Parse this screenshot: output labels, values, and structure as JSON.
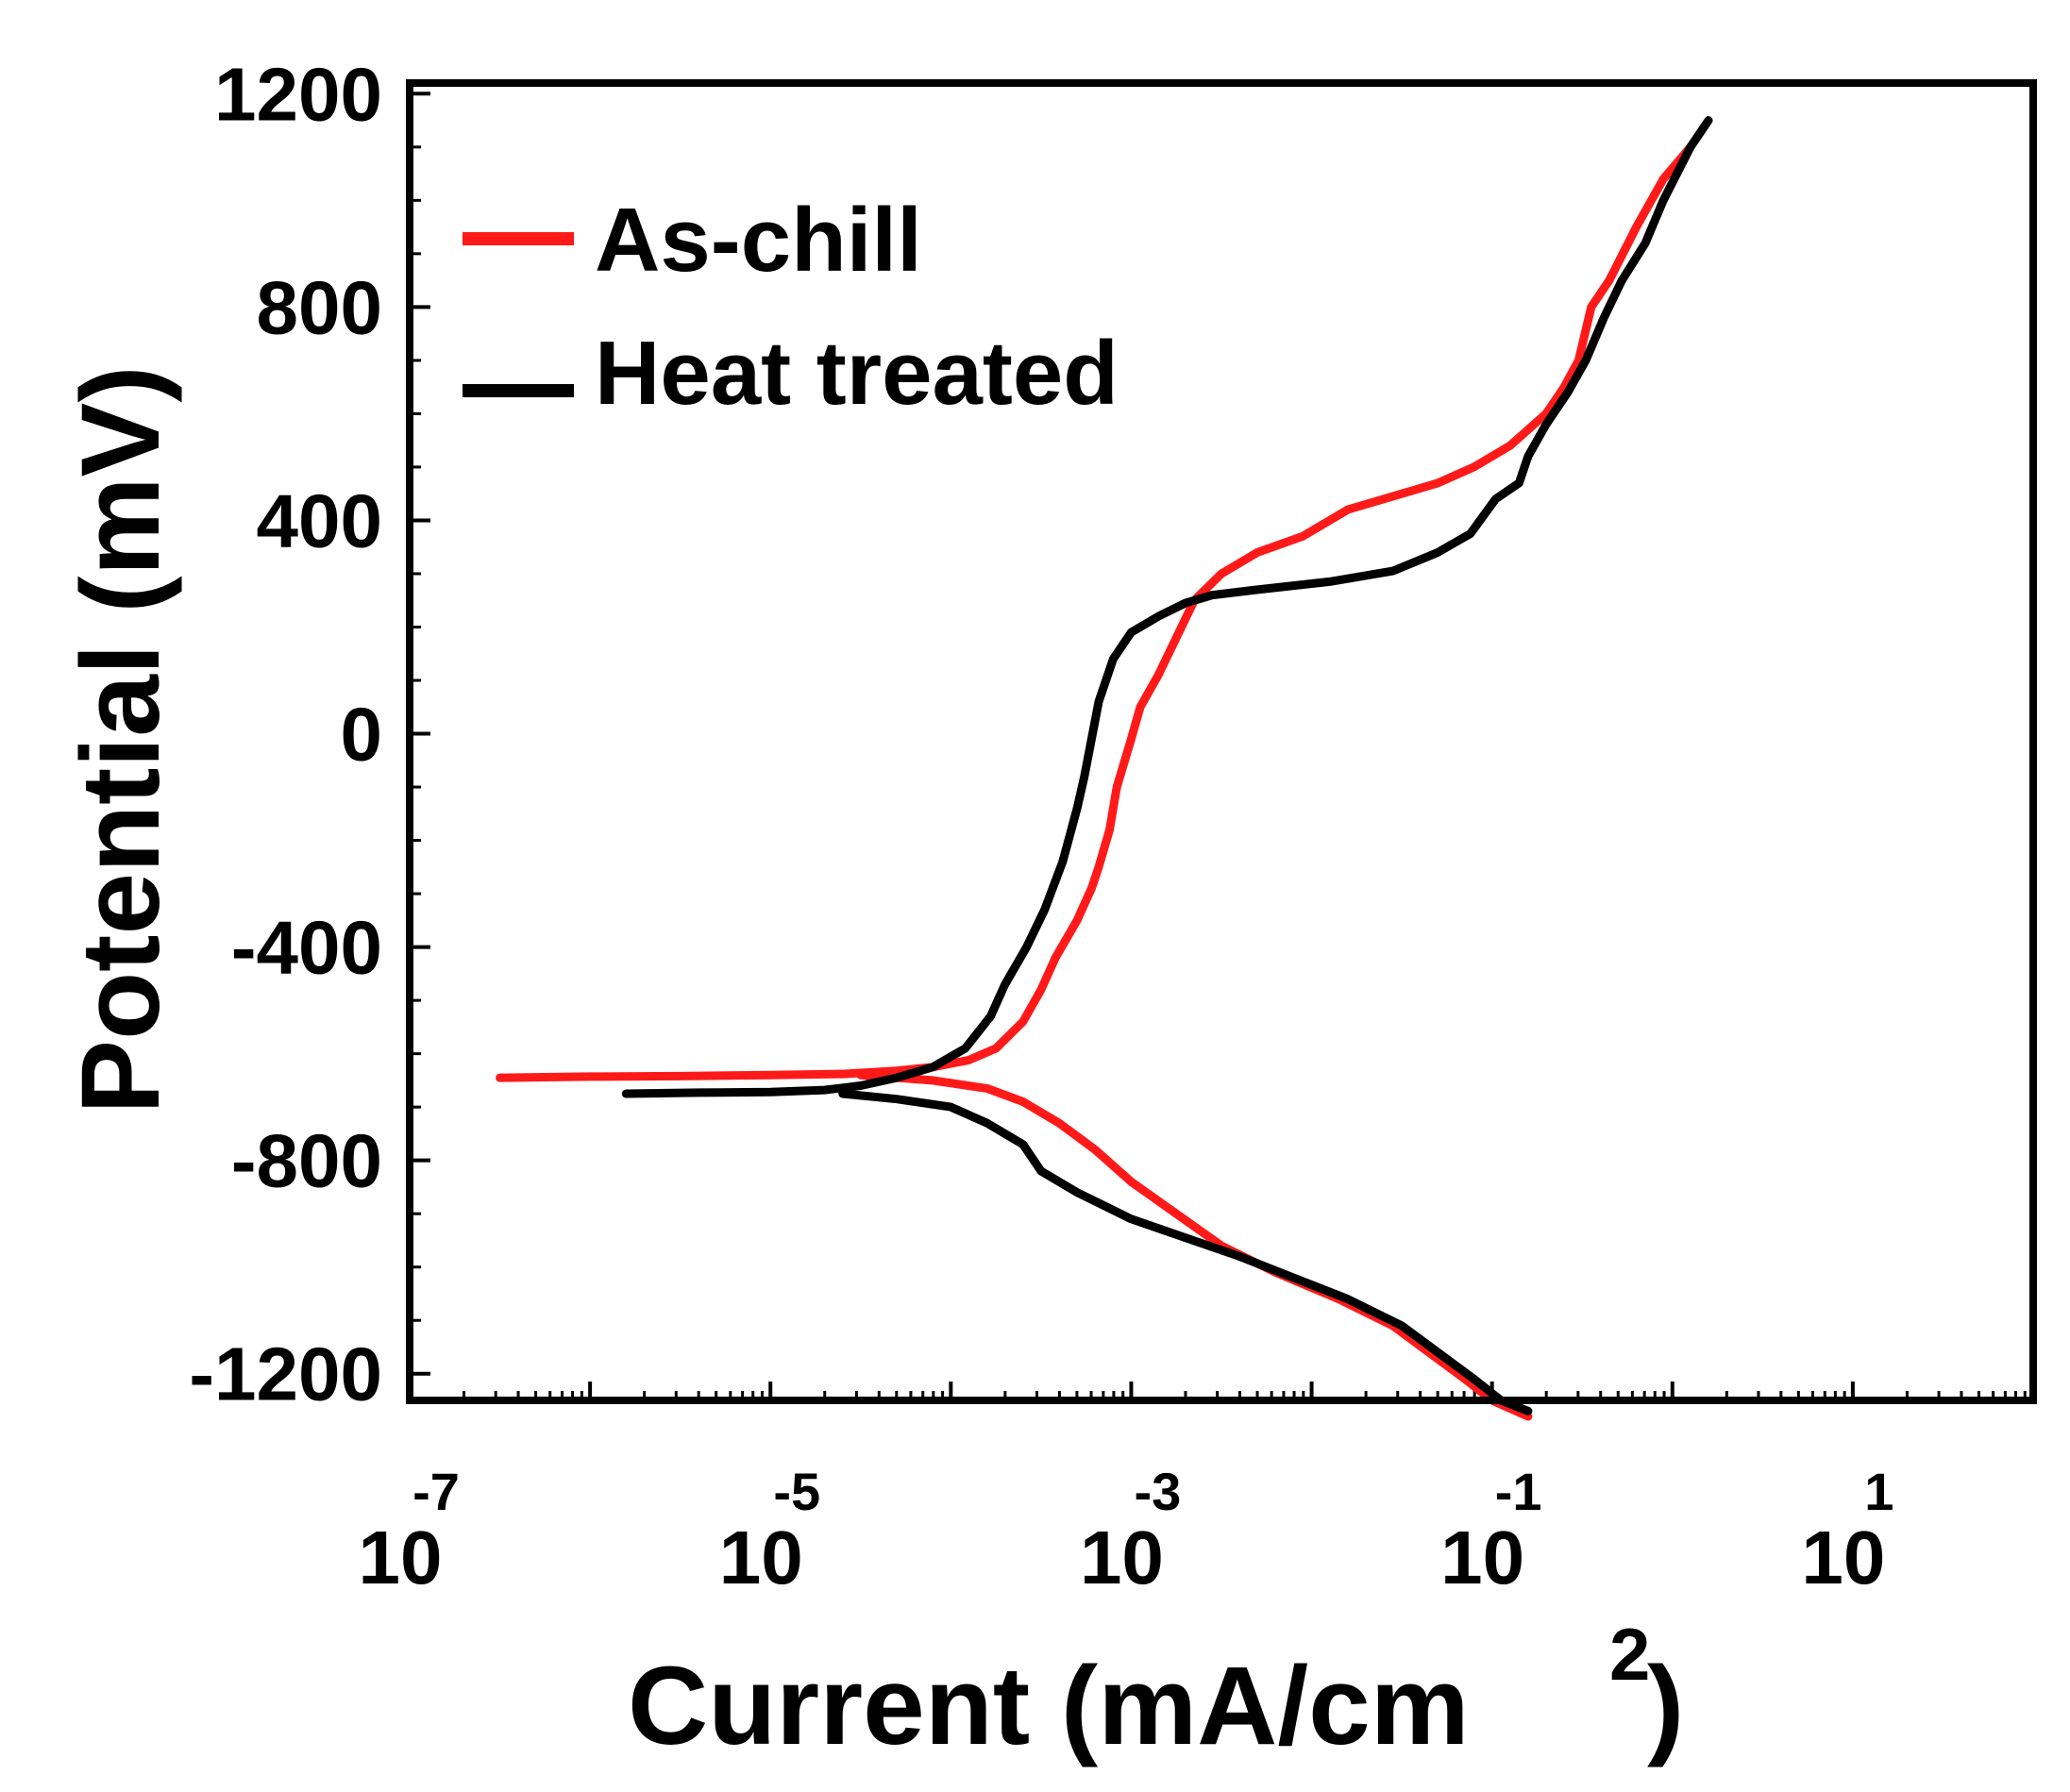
{
  "chart_data": {
    "type": "line",
    "title": "",
    "xlabel": "Current (mA/cm",
    "xlabel_superscript": "2",
    "xlabel_close": ")",
    "ylabel": "Potential (mV)",
    "xscale": "log",
    "xlim_exponent": [
      -7,
      2
    ],
    "ylim": [
      -1250,
      1220
    ],
    "x_ticks": [
      {
        "base": "10",
        "exp": "-7",
        "value": -7
      },
      {
        "base": "10",
        "exp": "-5",
        "value": -5
      },
      {
        "base": "10",
        "exp": "-3",
        "value": -3
      },
      {
        "base": "10",
        "exp": "-1",
        "value": -1
      },
      {
        "base": "10",
        "exp": "1",
        "value": 1
      }
    ],
    "y_ticks": [
      "1200",
      "800",
      "400",
      "0",
      "-400",
      "-800",
      "-1200"
    ],
    "legend_position": "top-left",
    "series": [
      {
        "name": "As-chill",
        "color": "#ff1a1a",
        "points": [
          [
            -6.5,
            -645
          ],
          [
            -6.0,
            -643
          ],
          [
            -5.5,
            -642
          ],
          [
            -5.0,
            -640
          ],
          [
            -4.6,
            -638
          ],
          [
            -4.3,
            -632
          ],
          [
            -4.1,
            -625
          ],
          [
            -3.9,
            -612
          ],
          [
            -3.75,
            -590
          ],
          [
            -3.6,
            -540
          ],
          [
            -3.5,
            -480
          ],
          [
            -3.42,
            -420
          ],
          [
            -3.3,
            -350
          ],
          [
            -3.22,
            -290
          ],
          [
            -3.18,
            -250
          ],
          [
            -3.12,
            -180
          ],
          [
            -3.08,
            -100
          ],
          [
            -3.0,
            -10
          ],
          [
            -2.95,
            50
          ],
          [
            -2.85,
            110
          ],
          [
            -2.75,
            180
          ],
          [
            -2.65,
            250
          ],
          [
            -2.5,
            300
          ],
          [
            -2.3,
            340
          ],
          [
            -2.05,
            370
          ],
          [
            -1.8,
            420
          ],
          [
            -1.5,
            450
          ],
          [
            -1.3,
            470
          ],
          [
            -1.1,
            500
          ],
          [
            -0.9,
            540
          ],
          [
            -0.7,
            600
          ],
          [
            -0.6,
            650
          ],
          [
            -0.52,
            700
          ],
          [
            -0.45,
            800
          ],
          [
            -0.35,
            850
          ],
          [
            -0.2,
            950
          ],
          [
            -0.05,
            1040
          ],
          [
            0.1,
            1100
          ]
        ],
        "cathodic_points": [
          [
            -4.5,
            -640
          ],
          [
            -4.1,
            -650
          ],
          [
            -3.8,
            -665
          ],
          [
            -3.6,
            -690
          ],
          [
            -3.4,
            -730
          ],
          [
            -3.2,
            -780
          ],
          [
            -3.0,
            -840
          ],
          [
            -2.75,
            -900
          ],
          [
            -2.5,
            -960
          ],
          [
            -2.2,
            -1010
          ],
          [
            -1.85,
            -1060
          ],
          [
            -1.55,
            -1110
          ],
          [
            -1.35,
            -1160
          ],
          [
            -1.15,
            -1210
          ],
          [
            -1.0,
            -1250
          ],
          [
            -0.8,
            -1280
          ]
        ]
      },
      {
        "name": "Heat treated",
        "color": "#000000",
        "points": [
          [
            -5.8,
            -675
          ],
          [
            -5.4,
            -673
          ],
          [
            -5.0,
            -672
          ],
          [
            -4.7,
            -668
          ],
          [
            -4.5,
            -660
          ],
          [
            -4.3,
            -645
          ],
          [
            -4.1,
            -625
          ],
          [
            -3.92,
            -590
          ],
          [
            -3.78,
            -530
          ],
          [
            -3.7,
            -470
          ],
          [
            -3.58,
            -400
          ],
          [
            -3.48,
            -330
          ],
          [
            -3.38,
            -240
          ],
          [
            -3.3,
            -140
          ],
          [
            -3.26,
            -80
          ],
          [
            -3.22,
            -10
          ],
          [
            -3.18,
            60
          ],
          [
            -3.1,
            140
          ],
          [
            -3.0,
            190
          ],
          [
            -2.85,
            220
          ],
          [
            -2.7,
            245
          ],
          [
            -2.55,
            260
          ],
          [
            -2.3,
            270
          ],
          [
            -1.9,
            285
          ],
          [
            -1.55,
            305
          ],
          [
            -1.3,
            340
          ],
          [
            -1.12,
            375
          ],
          [
            -0.98,
            440
          ],
          [
            -0.85,
            470
          ],
          [
            -0.8,
            520
          ],
          [
            -0.7,
            580
          ],
          [
            -0.58,
            640
          ],
          [
            -0.48,
            700
          ],
          [
            -0.38,
            780
          ],
          [
            -0.28,
            850
          ],
          [
            -0.15,
            920
          ],
          [
            -0.05,
            1000
          ],
          [
            0.1,
            1100
          ],
          [
            0.2,
            1150
          ]
        ],
        "cathodic_points": [
          [
            -4.6,
            -675
          ],
          [
            -4.3,
            -685
          ],
          [
            -4.0,
            -700
          ],
          [
            -3.8,
            -730
          ],
          [
            -3.6,
            -770
          ],
          [
            -3.5,
            -820
          ],
          [
            -3.3,
            -860
          ],
          [
            -3.0,
            -910
          ],
          [
            -2.7,
            -945
          ],
          [
            -2.4,
            -980
          ],
          [
            -2.1,
            -1020
          ],
          [
            -1.8,
            -1060
          ],
          [
            -1.5,
            -1110
          ],
          [
            -1.3,
            -1160
          ],
          [
            -1.1,
            -1210
          ],
          [
            -0.95,
            -1250
          ],
          [
            -0.8,
            -1270
          ]
        ]
      }
    ]
  },
  "legend": {
    "items": [
      {
        "label": "As-chill",
        "color": "#ff1a1a"
      },
      {
        "label": "Heat treated",
        "color": "#000000"
      }
    ]
  }
}
